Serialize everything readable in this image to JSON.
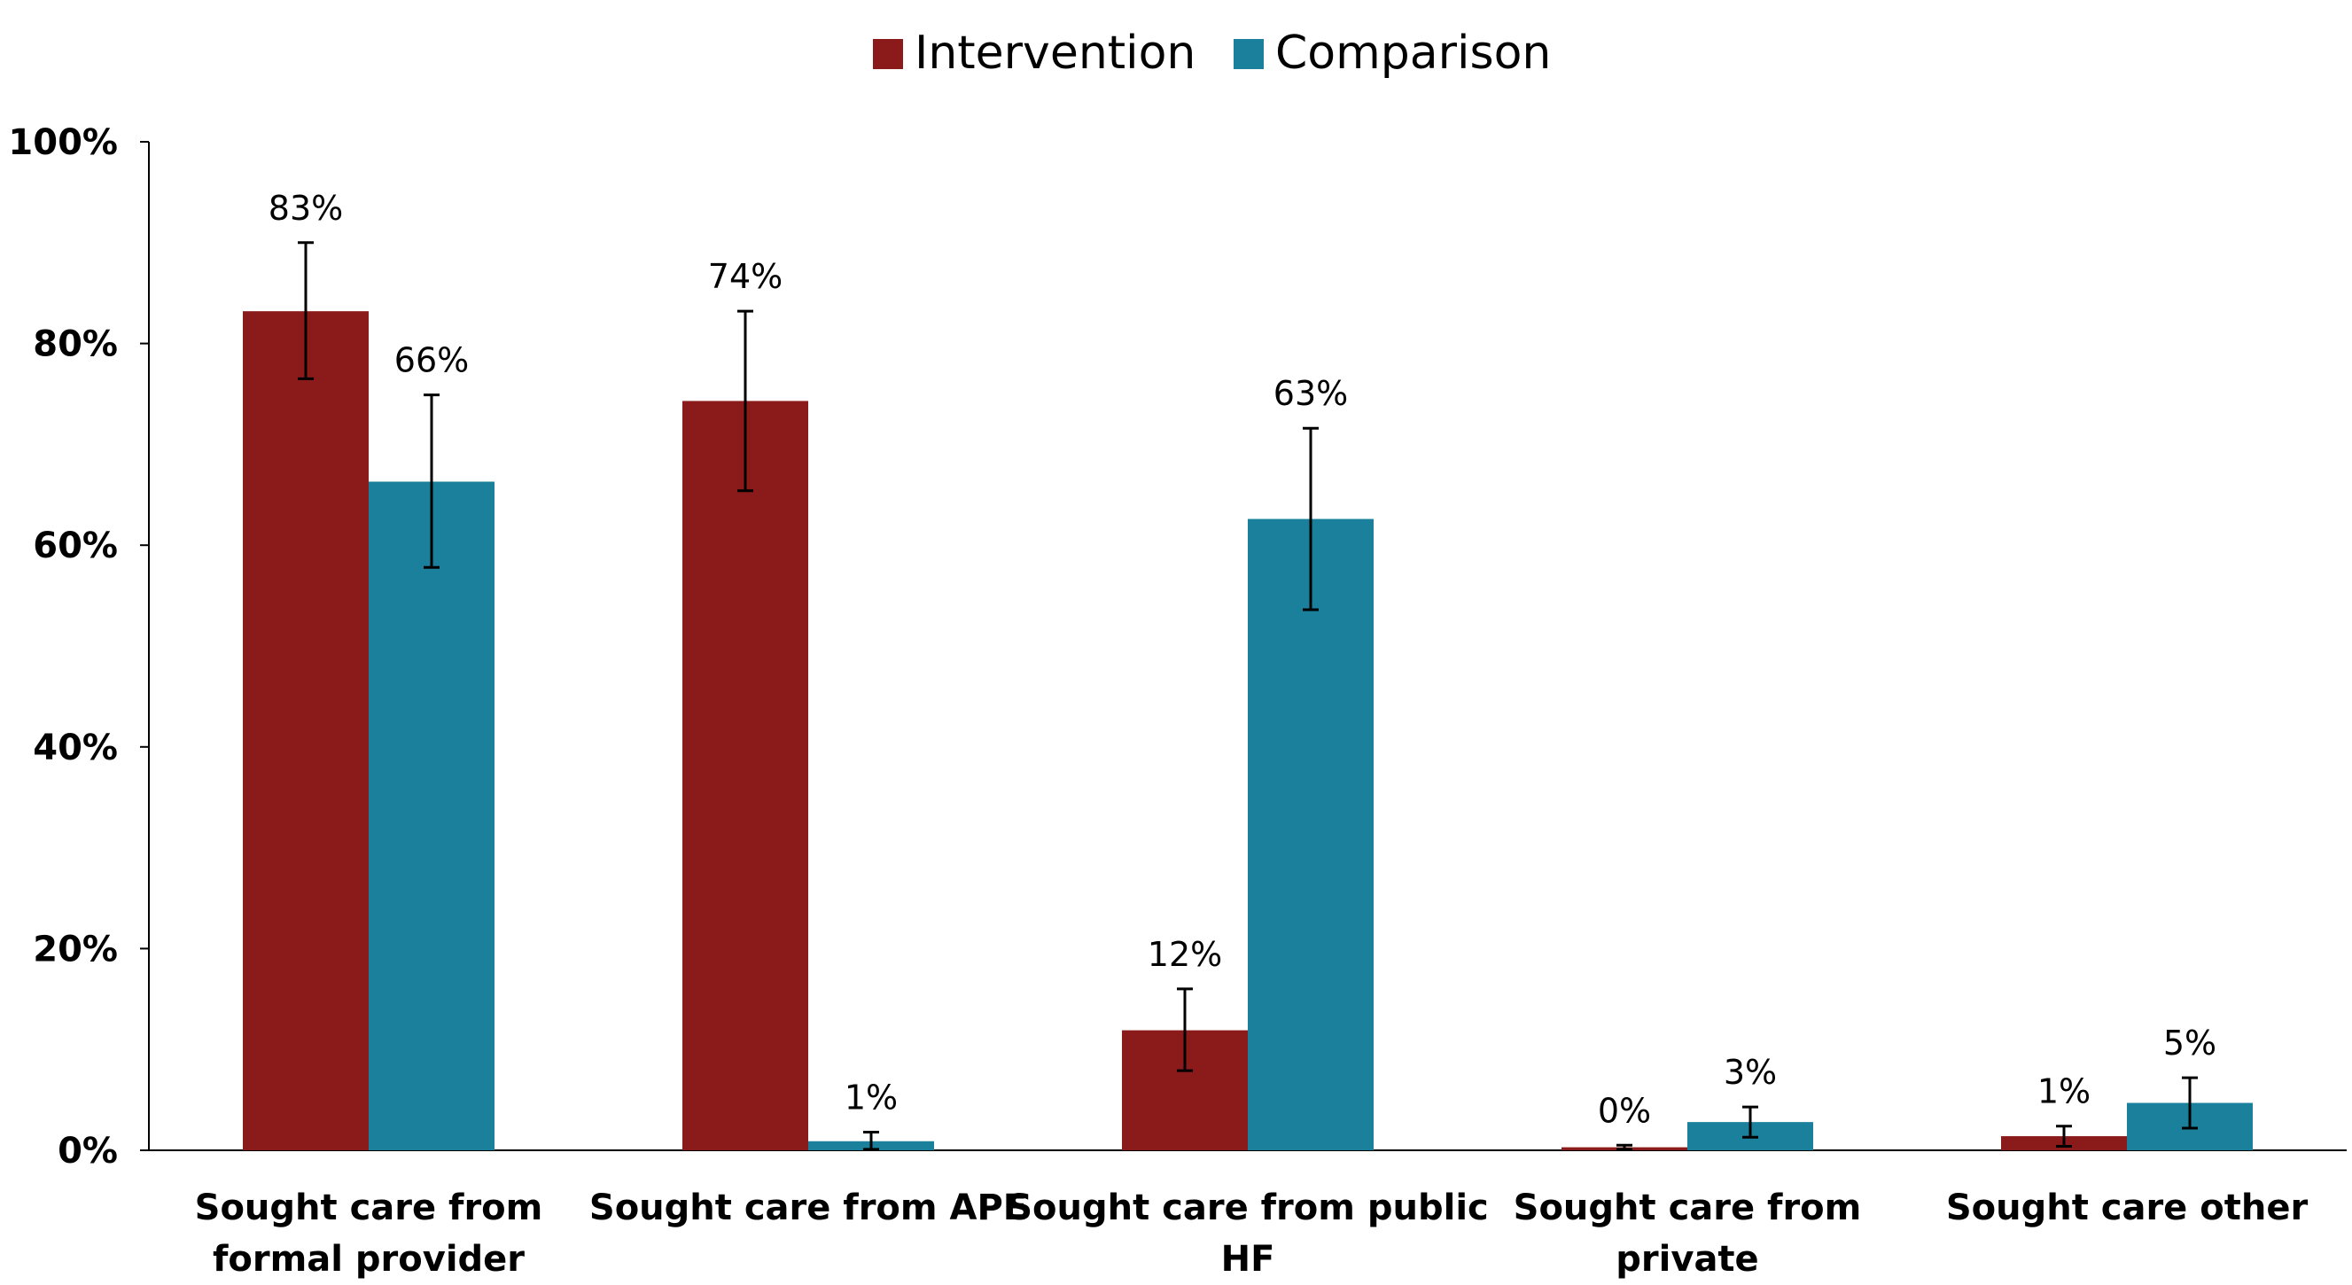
{
  "chart_data": {
    "type": "bar",
    "title": "",
    "xlabel": "",
    "ylabel": "",
    "ylim": [
      0,
      100
    ],
    "y_ticks": [
      "0%",
      "20%",
      "40%",
      "60%",
      "80%",
      "100%"
    ],
    "grid": false,
    "legend_placement": "top-center",
    "categories": [
      [
        "Sought care from",
        "formal provider"
      ],
      [
        "Sought care from APE"
      ],
      [
        "Sought care from public",
        "HF"
      ],
      [
        "Sought care from",
        "private"
      ],
      [
        "Sought care other"
      ]
    ],
    "series": [
      {
        "name": "Intervention",
        "color": "#8b1a1a",
        "values": [
          83.2,
          74.3,
          11.9,
          0.3,
          1.4
        ],
        "labels": [
          "83%",
          "74%",
          "12%",
          "0%",
          "1%"
        ],
        "error_low": [
          76.5,
          65.4,
          7.9,
          0.1,
          0.4
        ],
        "error_high": [
          90.0,
          83.2,
          16.0,
          0.5,
          2.4
        ]
      },
      {
        "name": "Comparison",
        "color": "#1a809b",
        "values": [
          66.3,
          0.9,
          62.6,
          2.8,
          4.7
        ],
        "labels": [
          "66%",
          "1%",
          "63%",
          "3%",
          "5%"
        ],
        "error_low": [
          57.8,
          0.1,
          53.6,
          1.3,
          2.2
        ],
        "error_high": [
          74.9,
          1.8,
          71.6,
          4.3,
          7.2
        ]
      }
    ]
  }
}
